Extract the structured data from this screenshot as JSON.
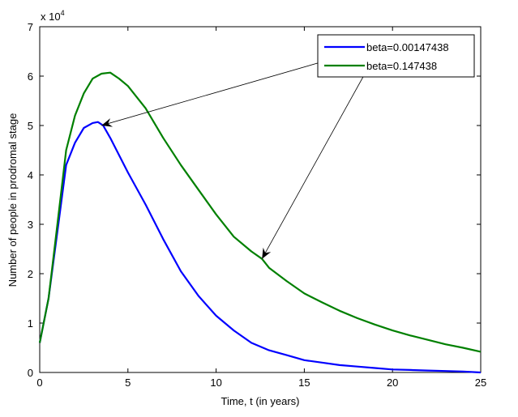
{
  "chart_data": {
    "type": "line",
    "title": "",
    "xlabel": "Time, t (in years)",
    "ylabel": "Number of people in prodromal stage",
    "y_multiplier_label": "x 10",
    "y_multiplier_exponent": "4",
    "xlim": [
      0,
      25
    ],
    "ylim": [
      0,
      7
    ],
    "xticks": [
      "0",
      "5",
      "10",
      "15",
      "20",
      "25"
    ],
    "yticks": [
      "0",
      "1",
      "2",
      "3",
      "4",
      "5",
      "6",
      "7"
    ],
    "grid": false,
    "legend_position": "top-right",
    "series": [
      {
        "name": "beta=0.00147438",
        "color": "#0000ff",
        "x": [
          0,
          0.5,
          1,
          1.5,
          2,
          2.5,
          3,
          3.3,
          3.6,
          4,
          4.5,
          5,
          6,
          7,
          8,
          9,
          10,
          11,
          12,
          13,
          14,
          15,
          16,
          17,
          18,
          19,
          20,
          21,
          22,
          23,
          24,
          25
        ],
        "y": [
          0.6,
          1.5,
          2.85,
          4.2,
          4.65,
          4.95,
          5.05,
          5.07,
          5.0,
          4.75,
          4.4,
          4.05,
          3.4,
          2.7,
          2.05,
          1.55,
          1.15,
          0.85,
          0.6,
          0.45,
          0.35,
          0.25,
          0.2,
          0.15,
          0.12,
          0.09,
          0.06,
          0.05,
          0.04,
          0.03,
          0.02,
          0.0
        ]
      },
      {
        "name": "beta=0.147438",
        "color": "#008000",
        "x": [
          0,
          0.5,
          1,
          1.5,
          2,
          2.5,
          3,
          3.5,
          4,
          4.5,
          5,
          6,
          7,
          8,
          9,
          10,
          11,
          12,
          12.6,
          13,
          14,
          15,
          16,
          17,
          18,
          19,
          20,
          21,
          22,
          23,
          24,
          25
        ],
        "y": [
          0.6,
          1.5,
          3.0,
          4.5,
          5.2,
          5.65,
          5.95,
          6.05,
          6.07,
          5.95,
          5.8,
          5.35,
          4.75,
          4.2,
          3.7,
          3.2,
          2.75,
          2.45,
          2.3,
          2.12,
          1.85,
          1.6,
          1.42,
          1.25,
          1.1,
          0.97,
          0.85,
          0.75,
          0.66,
          0.57,
          0.5,
          0.42
        ]
      }
    ],
    "annotations": [
      {
        "type": "arrow",
        "from_legend": "beta=0.00147438",
        "to": [
          3.5,
          5.0
        ]
      },
      {
        "type": "arrow",
        "from_legend": "beta=0.147438",
        "to": [
          12.6,
          2.3
        ]
      }
    ]
  }
}
